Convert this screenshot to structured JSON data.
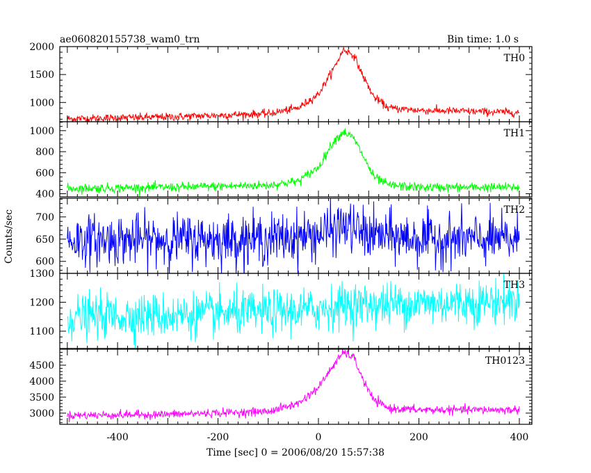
{
  "chart_data": {
    "type": "line",
    "title_left": "ae060820155738_wam0_trn",
    "title_right": "Bin time: 1.0 s",
    "xlabel": "Time [sec] 0 = 2006/08/20 15:57:38",
    "ylabel": "Counts/sec",
    "xlim": [
      -515,
      425
    ],
    "x_ticks": [
      -400,
      -200,
      0,
      200,
      400
    ],
    "bin_time_s": 1.0,
    "panels": [
      {
        "name": "TH0",
        "color": "#ff0000",
        "ylim": [
          655,
          2000
        ],
        "y_ticks": [
          1000,
          1500,
          2000
        ],
        "baseline_start": 710,
        "baseline_end": 820,
        "pre_rise": 900,
        "peak_time": 50,
        "peak_value": 1950,
        "noise": 35,
        "profile": [
          [
            -500,
            710
          ],
          [
            -300,
            740
          ],
          [
            -100,
            800
          ],
          [
            -40,
            900
          ],
          [
            0,
            1150
          ],
          [
            30,
            1600
          ],
          [
            50,
            1950
          ],
          [
            70,
            1850
          ],
          [
            90,
            1450
          ],
          [
            110,
            1100
          ],
          [
            140,
            900
          ],
          [
            200,
            860
          ],
          [
            400,
            820
          ]
        ]
      },
      {
        "name": "TH1",
        "color": "#00ff00",
        "ylim": [
          370,
          1085
        ],
        "y_ticks": [
          400,
          600,
          800,
          1000
        ],
        "profile": [
          [
            -500,
            450
          ],
          [
            -300,
            460
          ],
          [
            -100,
            480
          ],
          [
            -40,
            520
          ],
          [
            0,
            650
          ],
          [
            30,
            900
          ],
          [
            50,
            990
          ],
          [
            70,
            930
          ],
          [
            90,
            750
          ],
          [
            110,
            560
          ],
          [
            140,
            480
          ],
          [
            200,
            460
          ],
          [
            400,
            460
          ]
        ],
        "noise": 22
      },
      {
        "name": "TH2",
        "color": "#0000ff",
        "ylim": [
          573,
          742
        ],
        "y_ticks": [
          600,
          650,
          700
        ],
        "profile": [
          [
            -500,
            648
          ],
          [
            -100,
            650
          ],
          [
            0,
            660
          ],
          [
            50,
            680
          ],
          [
            100,
            660
          ],
          [
            200,
            650
          ],
          [
            400,
            648
          ]
        ],
        "noise": 28
      },
      {
        "name": "TH3",
        "color": "#00ffff",
        "ylim": [
          1040,
          1300
        ],
        "y_ticks": [
          1100,
          1200,
          1300
        ],
        "profile": [
          [
            -500,
            1150
          ],
          [
            -300,
            1155
          ],
          [
            -100,
            1165
          ],
          [
            0,
            1175
          ],
          [
            50,
            1190
          ],
          [
            200,
            1195
          ],
          [
            400,
            1205
          ]
        ],
        "noise": 38
      },
      {
        "name": "TH0123",
        "color": "#ff00ff",
        "ylim": [
          2650,
          5000
        ],
        "y_ticks": [
          3000,
          3500,
          4000,
          4500
        ],
        "profile": [
          [
            -500,
            2930
          ],
          [
            -300,
            2960
          ],
          [
            -100,
            3050
          ],
          [
            -40,
            3300
          ],
          [
            0,
            3800
          ],
          [
            30,
            4500
          ],
          [
            50,
            4900
          ],
          [
            70,
            4750
          ],
          [
            90,
            4000
          ],
          [
            110,
            3400
          ],
          [
            140,
            3150
          ],
          [
            200,
            3100
          ],
          [
            400,
            3100
          ]
        ],
        "noise": 65
      }
    ]
  }
}
